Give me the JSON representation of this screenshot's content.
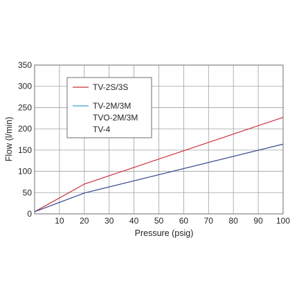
{
  "chart_data": {
    "type": "line",
    "xlabel": "Pressure (psig)",
    "ylabel": "Flow (l/min)",
    "xlim": [
      0,
      100
    ],
    "ylim": [
      0,
      350
    ],
    "x_ticks": [
      "10",
      "20",
      "30",
      "40",
      "50",
      "60",
      "70",
      "80",
      "90",
      "100"
    ],
    "y_ticks": [
      "0",
      "50",
      "100",
      "150",
      "200",
      "250",
      "300",
      "350"
    ],
    "grid": true,
    "legend_position": "top-left",
    "series": [
      {
        "name": "TV-2S/3S",
        "color": "#c8323c",
        "x": [
          0,
          20,
          100
        ],
        "y": [
          5,
          70,
          227
        ]
      },
      {
        "name": "TV-2M/3M",
        "legend_extra_lines": [
          "TVO-2M/3M",
          "TV-4"
        ],
        "color": "#35458f",
        "legend_swatch_color": "#3fa0d6",
        "x": [
          0,
          20,
          100
        ],
        "y": [
          5,
          49,
          164
        ]
      }
    ]
  }
}
